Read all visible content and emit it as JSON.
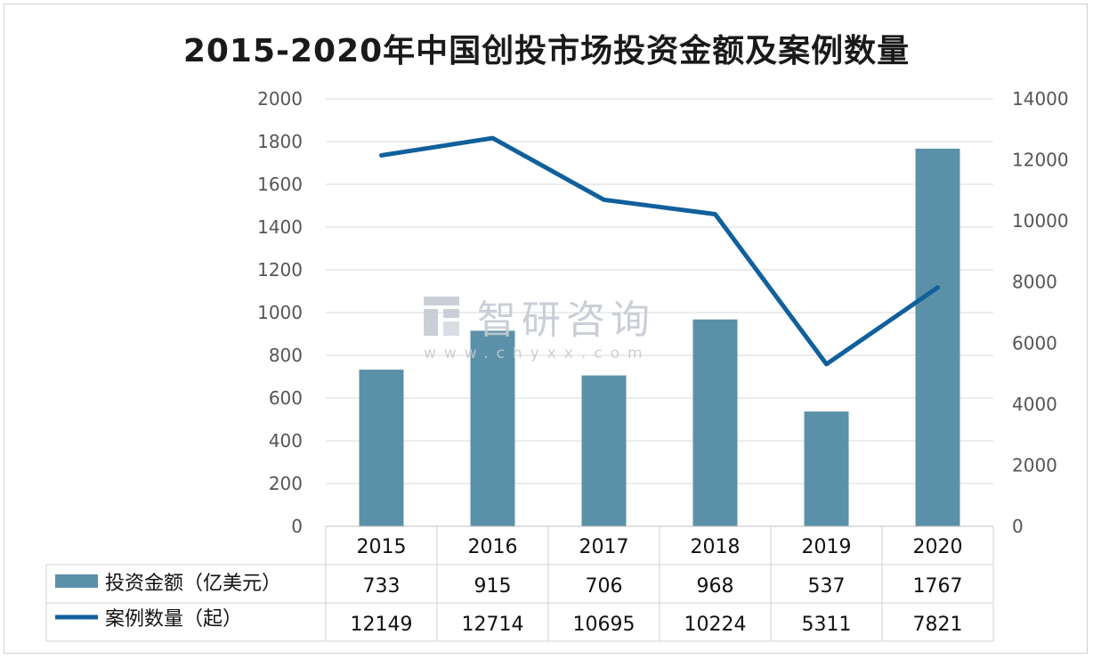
{
  "chart_data": {
    "type": "bar+line",
    "title": "2015-2020年中国创投市场投资金额及案例数量",
    "categories": [
      "2015",
      "2016",
      "2017",
      "2018",
      "2019",
      "2020"
    ],
    "series": [
      {
        "name": "投资金额（亿美元）",
        "type": "bar",
        "axis": "left",
        "color": "#5b91a8",
        "values": [
          733,
          915,
          706,
          968,
          537,
          1767
        ]
      },
      {
        "name": "案例数量（起）",
        "type": "line",
        "axis": "right",
        "color": "#10609c",
        "values": [
          12149,
          12714,
          10695,
          10224,
          5311,
          7821
        ]
      }
    ],
    "y_left": {
      "min": 0,
      "max": 2000,
      "ticks": [
        "0",
        "200",
        "400",
        "600",
        "800",
        "1000",
        "1200",
        "1400",
        "1600",
        "1800",
        "2000"
      ]
    },
    "y_right": {
      "min": 0,
      "max": 14000,
      "ticks": [
        "0",
        "2000",
        "4000",
        "6000",
        "8000",
        "10000",
        "12000",
        "14000"
      ]
    },
    "grid": true,
    "data_table": true
  },
  "watermark": {
    "text": "智研咨询",
    "url": "www.chyxx.com",
    "icon": "chyxx-logo-icon"
  }
}
